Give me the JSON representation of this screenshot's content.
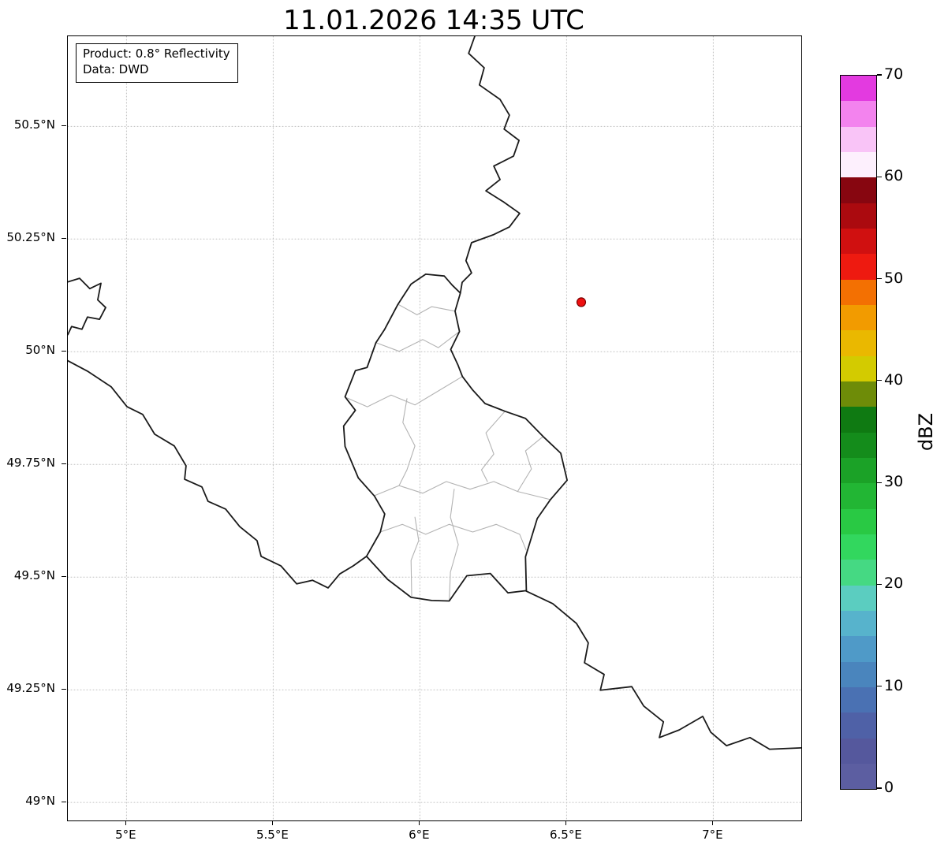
{
  "title": "11.01.2026 14:35 UTC",
  "info_box": {
    "product_line": "Product: 0.8° Reflectivity",
    "data_line": "Data: DWD"
  },
  "map": {
    "extent": {
      "lon_min": 4.8,
      "lon_max": 7.3,
      "lat_min": 48.96,
      "lat_max": 50.7
    },
    "grid_color": "#c0c0c0",
    "x_ticks": [
      {
        "value": 5.0,
        "label": "5°E"
      },
      {
        "value": 5.5,
        "label": "5.5°E"
      },
      {
        "value": 6.0,
        "label": "6°E"
      },
      {
        "value": 6.5,
        "label": "6.5°E"
      },
      {
        "value": 7.0,
        "label": "7°E"
      }
    ],
    "y_ticks": [
      {
        "value": 49.0,
        "label": "49°N"
      },
      {
        "value": 49.25,
        "label": "49.25°N"
      },
      {
        "value": 49.5,
        "label": "49.5°N"
      },
      {
        "value": 49.75,
        "label": "49.75°N"
      },
      {
        "value": 50.0,
        "label": "50°N"
      },
      {
        "value": 50.25,
        "label": "50.25°N"
      },
      {
        "value": 50.5,
        "label": "50.5°N"
      }
    ],
    "radar_marker": {
      "lon": 6.55,
      "lat": 50.11,
      "color": "#ee1010",
      "edge_color": "#7a0000"
    },
    "borders": {
      "country_color": "#1a1a1a",
      "canton_color": "#b3b3b3",
      "luxembourg": [
        [
          6.02,
          50.172
        ],
        [
          6.083,
          50.168
        ],
        [
          6.11,
          50.148
        ],
        [
          6.138,
          50.13
        ],
        [
          6.12,
          50.09
        ],
        [
          6.135,
          50.045
        ],
        [
          6.105,
          50.005
        ],
        [
          6.13,
          49.97
        ],
        [
          6.145,
          49.945
        ],
        [
          6.18,
          49.915
        ],
        [
          6.222,
          49.885
        ],
        [
          6.29,
          49.868
        ],
        [
          6.36,
          49.852
        ],
        [
          6.42,
          49.812
        ],
        [
          6.48,
          49.775
        ],
        [
          6.502,
          49.715
        ],
        [
          6.445,
          49.672
        ],
        [
          6.4,
          49.63
        ],
        [
          6.36,
          49.545
        ],
        [
          6.363,
          49.47
        ],
        [
          6.3,
          49.465
        ],
        [
          6.24,
          49.508
        ],
        [
          6.16,
          49.503
        ],
        [
          6.1,
          49.447
        ],
        [
          6.04,
          49.448
        ],
        [
          5.97,
          49.455
        ],
        [
          5.89,
          49.495
        ],
        [
          5.818,
          49.546
        ],
        [
          5.865,
          49.6
        ],
        [
          5.88,
          49.64
        ],
        [
          5.845,
          49.68
        ],
        [
          5.79,
          49.72
        ],
        [
          5.745,
          49.79
        ],
        [
          5.74,
          49.835
        ],
        [
          5.78,
          49.87
        ],
        [
          5.745,
          49.9
        ],
        [
          5.78,
          49.958
        ],
        [
          5.82,
          49.965
        ],
        [
          5.85,
          50.02
        ],
        [
          5.88,
          50.05
        ],
        [
          5.925,
          50.105
        ],
        [
          5.97,
          50.15
        ]
      ],
      "belgium_germany": [
        [
          6.187,
          50.7
        ],
        [
          6.166,
          50.662
        ],
        [
          6.219,
          50.63
        ],
        [
          6.203,
          50.592
        ],
        [
          6.273,
          50.56
        ],
        [
          6.305,
          50.525
        ],
        [
          6.287,
          50.494
        ],
        [
          6.338,
          50.469
        ],
        [
          6.319,
          50.434
        ],
        [
          6.252,
          50.412
        ],
        [
          6.273,
          50.382
        ],
        [
          6.225,
          50.357
        ],
        [
          6.284,
          50.333
        ],
        [
          6.34,
          50.307
        ],
        [
          6.305,
          50.277
        ],
        [
          6.252,
          50.26
        ],
        [
          6.176,
          50.242
        ],
        [
          6.157,
          50.202
        ],
        [
          6.176,
          50.175
        ],
        [
          6.144,
          50.154
        ],
        [
          6.138,
          50.13
        ]
      ],
      "france_belgium": [
        [
          4.8,
          49.98
        ],
        [
          4.867,
          49.957
        ],
        [
          4.948,
          49.922
        ],
        [
          5.002,
          49.878
        ],
        [
          5.055,
          49.861
        ],
        [
          5.096,
          49.817
        ],
        [
          5.163,
          49.791
        ],
        [
          5.203,
          49.747
        ],
        [
          5.198,
          49.717
        ],
        [
          5.257,
          49.7
        ],
        [
          5.278,
          49.668
        ],
        [
          5.338,
          49.651
        ],
        [
          5.386,
          49.612
        ],
        [
          5.445,
          49.581
        ],
        [
          5.459,
          49.546
        ],
        [
          5.526,
          49.525
        ],
        [
          5.58,
          49.485
        ],
        [
          5.634,
          49.493
        ],
        [
          5.687,
          49.476
        ],
        [
          5.727,
          49.507
        ],
        [
          5.773,
          49.525
        ],
        [
          5.818,
          49.546
        ]
      ],
      "germany_france": [
        [
          6.362,
          49.469
        ],
        [
          6.453,
          49.441
        ],
        [
          6.534,
          49.397
        ],
        [
          6.574,
          49.354
        ],
        [
          6.561,
          49.31
        ],
        [
          6.628,
          49.284
        ],
        [
          6.615,
          49.249
        ],
        [
          6.722,
          49.257
        ],
        [
          6.763,
          49.214
        ],
        [
          6.83,
          49.179
        ],
        [
          6.816,
          49.144
        ],
        [
          6.884,
          49.161
        ],
        [
          6.964,
          49.191
        ],
        [
          6.991,
          49.156
        ],
        [
          7.045,
          49.126
        ],
        [
          7.125,
          49.144
        ],
        [
          7.192,
          49.118
        ],
        [
          7.3,
          49.121
        ]
      ],
      "givet_salient": [
        [
          4.8,
          50.155
        ],
        [
          4.84,
          50.163
        ],
        [
          4.875,
          50.14
        ],
        [
          4.913,
          50.152
        ],
        [
          4.902,
          50.115
        ],
        [
          4.929,
          50.098
        ],
        [
          4.908,
          50.072
        ],
        [
          4.867,
          50.077
        ],
        [
          4.848,
          50.05
        ],
        [
          4.813,
          50.056
        ],
        [
          4.8,
          50.038
        ]
      ],
      "cantons": [
        [
          [
            5.926,
            50.105
          ],
          [
            5.99,
            50.082
          ],
          [
            6.04,
            50.1
          ],
          [
            6.12,
            50.09
          ]
        ],
        [
          [
            5.851,
            50.02
          ],
          [
            5.929,
            50.001
          ],
          [
            6.01,
            50.027
          ],
          [
            6.063,
            50.009
          ],
          [
            6.135,
            50.045
          ]
        ],
        [
          [
            5.746,
            49.899
          ],
          [
            5.821,
            49.878
          ],
          [
            5.902,
            49.904
          ],
          [
            5.983,
            49.882
          ],
          [
            6.063,
            49.913
          ],
          [
            6.145,
            49.945
          ]
        ],
        [
          [
            5.956,
            49.896
          ],
          [
            5.942,
            49.843
          ],
          [
            5.983,
            49.791
          ],
          [
            5.956,
            49.738
          ],
          [
            5.929,
            49.703
          ]
        ],
        [
          [
            5.846,
            49.681
          ],
          [
            5.929,
            49.703
          ],
          [
            6.01,
            49.686
          ],
          [
            6.09,
            49.712
          ],
          [
            6.171,
            49.695
          ],
          [
            6.252,
            49.712
          ],
          [
            6.333,
            49.69
          ],
          [
            6.445,
            49.672
          ]
        ],
        [
          [
            6.29,
            49.868
          ],
          [
            6.225,
            49.82
          ],
          [
            6.252,
            49.773
          ],
          [
            6.21,
            49.738
          ],
          [
            6.23,
            49.712
          ]
        ],
        [
          [
            6.42,
            49.812
          ],
          [
            6.36,
            49.78
          ],
          [
            6.38,
            49.74
          ],
          [
            6.333,
            49.69
          ]
        ],
        [
          [
            5.865,
            49.6
          ],
          [
            5.94,
            49.617
          ],
          [
            6.02,
            49.595
          ],
          [
            6.1,
            49.617
          ],
          [
            6.18,
            49.6
          ],
          [
            6.26,
            49.617
          ],
          [
            6.34,
            49.595
          ],
          [
            6.362,
            49.56
          ]
        ],
        [
          [
            6.117,
            49.695
          ],
          [
            6.104,
            49.633
          ],
          [
            6.131,
            49.572
          ],
          [
            6.104,
            49.511
          ],
          [
            6.1,
            49.447
          ]
        ],
        [
          [
            5.983,
            49.633
          ],
          [
            5.996,
            49.581
          ],
          [
            5.97,
            49.537
          ],
          [
            5.972,
            49.458
          ]
        ]
      ]
    }
  },
  "colorbar": {
    "label": "dBZ",
    "min": 0,
    "max": 70,
    "ticks": [
      {
        "value": 0,
        "label": "0"
      },
      {
        "value": 10,
        "label": "10"
      },
      {
        "value": 20,
        "label": "20"
      },
      {
        "value": 30,
        "label": "30"
      },
      {
        "value": 40,
        "label": "40"
      },
      {
        "value": 50,
        "label": "50"
      },
      {
        "value": 60,
        "label": "60"
      },
      {
        "value": 70,
        "label": "70"
      }
    ],
    "step": 2.5,
    "colors_bottom_to_top": [
      "#5c5ea1",
      "#55589d",
      "#4f61a7",
      "#4a71b3",
      "#4a85bd",
      "#4f9ac8",
      "#57b3cc",
      "#5bcdc0",
      "#45d983",
      "#32d75e",
      "#29c944",
      "#22b634",
      "#1ba227",
      "#148c1b",
      "#0f7a12",
      "#6e8c08",
      "#d3cb00",
      "#eab800",
      "#f29b00",
      "#f37002",
      "#ee1a10",
      "#d01010",
      "#ab0a0f",
      "#870610",
      "#fdf0fd",
      "#f9c4f7",
      "#f383ee",
      "#e33ae0"
    ]
  }
}
